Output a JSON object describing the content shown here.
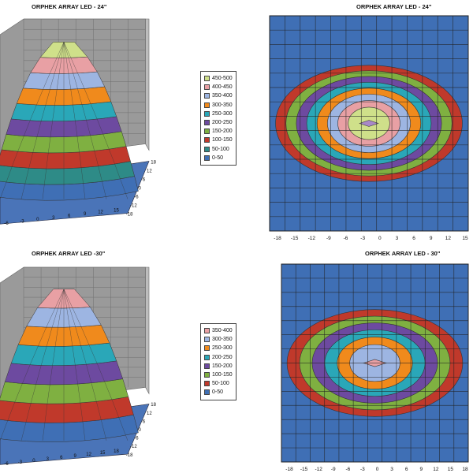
{
  "chart_data": [
    {
      "type": "surface",
      "title": "ORPHEK ARRAY LED - 24\"",
      "x_ticks": [
        "-6",
        "-3",
        "0",
        "3",
        "6",
        "9",
        "12",
        "15"
      ],
      "y_ticks": [
        "18",
        "12",
        "6",
        "0",
        "-6",
        "-12",
        "-18"
      ],
      "peak": 500,
      "colors": [
        "#3f6fb5",
        "#2e8b87",
        "#c0392b",
        "#7fb041",
        "#6d4aa0",
        "#2aa7b8",
        "#f08a1c",
        "#9db5e2",
        "#e8a0a4",
        "#cfe08a"
      ]
    },
    {
      "type": "heatmap",
      "title": "ORPHEK ARRAY LED - 24\"",
      "x_ticks": [
        "-18",
        "-15",
        "-12",
        "-9",
        "-6",
        "-3",
        "0",
        "3",
        "6",
        "9",
        "12",
        "15"
      ],
      "y_ticks": [],
      "levels": 10,
      "colors": [
        "#3f6fb5",
        "#c0392b",
        "#7fb041",
        "#6d4aa0",
        "#2aa7b8",
        "#f08a1c",
        "#9db5e2",
        "#e8a0a4",
        "#cfe08a",
        "#a889c8"
      ]
    },
    {
      "type": "legend",
      "entries": [
        "450-500",
        "400-450",
        "350-400",
        "300-350",
        "250-300",
        "200-250",
        "150-200",
        "100-150",
        "50-100",
        "0-50"
      ],
      "colors": [
        "#cfe08a",
        "#e8a0a4",
        "#9db5e2",
        "#f08a1c",
        "#2aa7b8",
        "#6d4aa0",
        "#7fb041",
        "#c0392b",
        "#2e8b87",
        "#3f6fb5"
      ]
    },
    {
      "type": "surface",
      "title": "ORPHEK ARRAY LED -30\"",
      "x_ticks": [
        "-6",
        "-3",
        "0",
        "3",
        "6",
        "9",
        "12",
        "15",
        "18"
      ],
      "y_ticks": [
        "18",
        "12",
        "6",
        "0",
        "-6",
        "-12",
        "-18"
      ],
      "peak": 400,
      "colors": [
        "#3f6fb5",
        "#c0392b",
        "#7fb041",
        "#6d4aa0",
        "#2aa7b8",
        "#f08a1c",
        "#9db5e2",
        "#e8a0a4"
      ]
    },
    {
      "type": "heatmap",
      "title": "ORPHEK ARRAY LED - 30\"",
      "x_ticks": [
        "-18",
        "-15",
        "-12",
        "-9",
        "-6",
        "-3",
        "0",
        "3",
        "6",
        "9",
        "12",
        "15",
        "18"
      ],
      "y_ticks": [],
      "levels": 8,
      "colors": [
        "#3f6fb5",
        "#c0392b",
        "#7fb041",
        "#6d4aa0",
        "#2aa7b8",
        "#f08a1c",
        "#9db5e2",
        "#e8a0a4"
      ]
    },
    {
      "type": "legend",
      "entries": [
        "350-400",
        "300-350",
        "250-300",
        "200-250",
        "150-200",
        "100-150",
        "50-100",
        "0-50"
      ],
      "colors": [
        "#e8a0a4",
        "#9db5e2",
        "#f08a1c",
        "#2aa7b8",
        "#6d4aa0",
        "#7fb041",
        "#c0392b",
        "#3f6fb5"
      ]
    }
  ]
}
